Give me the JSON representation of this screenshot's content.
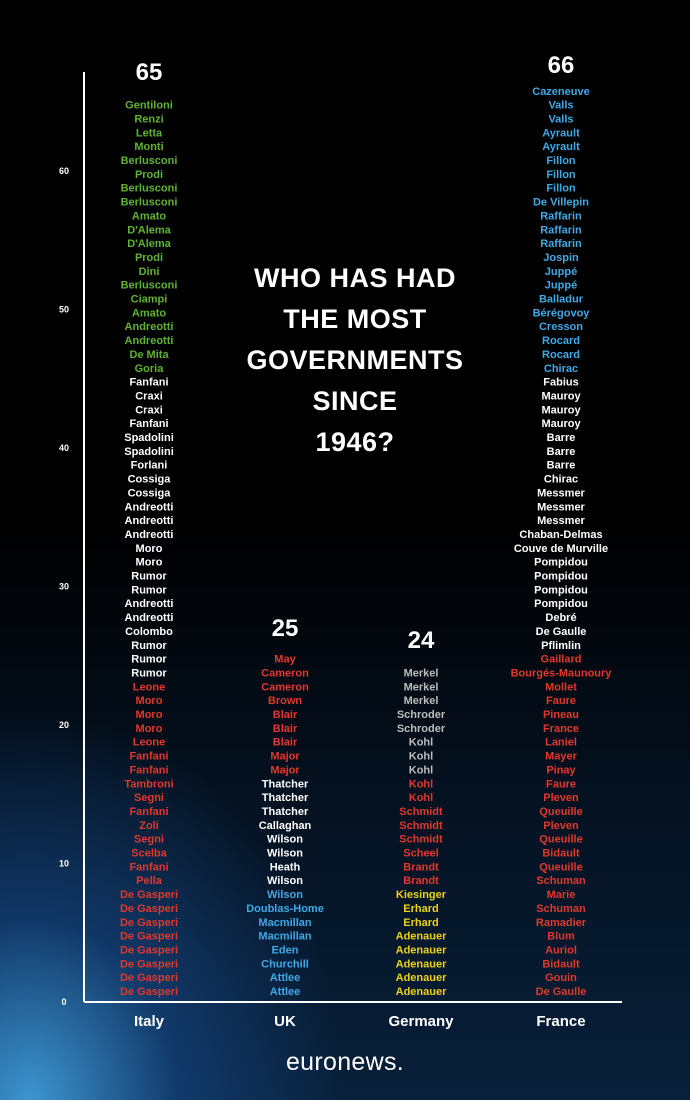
{
  "headline": [
    "WHO HAS HAD",
    "THE MOST",
    "GOVERNMENTS",
    "SINCE",
    "1946?"
  ],
  "brand": "euronews.",
  "colors": {
    "red": "#e0382c",
    "white": "#ffffff",
    "green": "#5fb233",
    "blue": "#3fa9e6",
    "grey": "#bdbdbd",
    "yellow": "#ecd21a"
  },
  "chart_data": {
    "type": "bar",
    "ylim": [
      0,
      66
    ],
    "yticks": [
      0,
      10,
      20,
      30,
      40,
      50,
      60
    ],
    "categories": [
      "Italy",
      "UK",
      "Germany",
      "France"
    ],
    "totals": [
      65,
      25,
      24,
      66
    ],
    "columns": [
      {
        "country": "Italy",
        "total": "65",
        "governments": [
          {
            "name": "De Gasperi",
            "color": "red"
          },
          {
            "name": "De Gasperi",
            "color": "red"
          },
          {
            "name": "De Gasperi",
            "color": "red"
          },
          {
            "name": "De Gasperi",
            "color": "red"
          },
          {
            "name": "De Gasperi",
            "color": "red"
          },
          {
            "name": "De Gasperi",
            "color": "red"
          },
          {
            "name": "De Gasperi",
            "color": "red"
          },
          {
            "name": "De Gasperi",
            "color": "red"
          },
          {
            "name": "Pella",
            "color": "red"
          },
          {
            "name": "Fanfani",
            "color": "red"
          },
          {
            "name": "Scelba",
            "color": "red"
          },
          {
            "name": "Segni",
            "color": "red"
          },
          {
            "name": "Zoli",
            "color": "red"
          },
          {
            "name": "Fanfani",
            "color": "red"
          },
          {
            "name": "Segni",
            "color": "red"
          },
          {
            "name": "Tambroni",
            "color": "red"
          },
          {
            "name": "Fanfani",
            "color": "red"
          },
          {
            "name": "Fanfani",
            "color": "red"
          },
          {
            "name": "Leone",
            "color": "red"
          },
          {
            "name": "Moro",
            "color": "red"
          },
          {
            "name": "Moro",
            "color": "red"
          },
          {
            "name": "Moro",
            "color": "red"
          },
          {
            "name": "Leone",
            "color": "red"
          },
          {
            "name": "Rumor",
            "color": "white"
          },
          {
            "name": "Rumor",
            "color": "white"
          },
          {
            "name": "Rumor",
            "color": "white"
          },
          {
            "name": "Colombo",
            "color": "white"
          },
          {
            "name": "Andreotti",
            "color": "white"
          },
          {
            "name": "Andreotti",
            "color": "white"
          },
          {
            "name": "Rumor",
            "color": "white"
          },
          {
            "name": "Rumor",
            "color": "white"
          },
          {
            "name": "Moro",
            "color": "white"
          },
          {
            "name": "Moro",
            "color": "white"
          },
          {
            "name": "Andreotti",
            "color": "white"
          },
          {
            "name": "Andreotti",
            "color": "white"
          },
          {
            "name": "Andreotti",
            "color": "white"
          },
          {
            "name": "Cossiga",
            "color": "white"
          },
          {
            "name": "Cossiga",
            "color": "white"
          },
          {
            "name": "Forlani",
            "color": "white"
          },
          {
            "name": "Spadolini",
            "color": "white"
          },
          {
            "name": "Spadolini",
            "color": "white"
          },
          {
            "name": "Fanfani",
            "color": "white"
          },
          {
            "name": "Craxi",
            "color": "white"
          },
          {
            "name": "Craxi",
            "color": "white"
          },
          {
            "name": "Fanfani",
            "color": "white"
          },
          {
            "name": "Goria",
            "color": "green"
          },
          {
            "name": "De Mita",
            "color": "green"
          },
          {
            "name": "Andreotti",
            "color": "green"
          },
          {
            "name": "Andreotti",
            "color": "green"
          },
          {
            "name": "Amato",
            "color": "green"
          },
          {
            "name": "Ciampi",
            "color": "green"
          },
          {
            "name": "Berlusconi",
            "color": "green"
          },
          {
            "name": "Dini",
            "color": "green"
          },
          {
            "name": "Prodi",
            "color": "green"
          },
          {
            "name": "D'Alema",
            "color": "green"
          },
          {
            "name": "D'Alema",
            "color": "green"
          },
          {
            "name": "Amato",
            "color": "green"
          },
          {
            "name": "Berlusconi",
            "color": "green"
          },
          {
            "name": "Berlusconi",
            "color": "green"
          },
          {
            "name": "Prodi",
            "color": "green"
          },
          {
            "name": "Berlusconi",
            "color": "green"
          },
          {
            "name": "Monti",
            "color": "green"
          },
          {
            "name": "Letta",
            "color": "green"
          },
          {
            "name": "Renzi",
            "color": "green"
          },
          {
            "name": "Gentiloni",
            "color": "green"
          }
        ]
      },
      {
        "country": "UK",
        "total": "25",
        "governments": [
          {
            "name": "Attlee",
            "color": "blue"
          },
          {
            "name": "Attlee",
            "color": "blue"
          },
          {
            "name": "Churchill",
            "color": "blue"
          },
          {
            "name": "Eden",
            "color": "blue"
          },
          {
            "name": "Macmillan",
            "color": "blue"
          },
          {
            "name": "Macmillan",
            "color": "blue"
          },
          {
            "name": "Doublas-Home",
            "color": "blue"
          },
          {
            "name": "Wilson",
            "color": "blue"
          },
          {
            "name": "Wilson",
            "color": "white"
          },
          {
            "name": "Heath",
            "color": "white"
          },
          {
            "name": "Wilson",
            "color": "white"
          },
          {
            "name": "Wilson",
            "color": "white"
          },
          {
            "name": "Callaghan",
            "color": "white"
          },
          {
            "name": "Thatcher",
            "color": "white"
          },
          {
            "name": "Thatcher",
            "color": "white"
          },
          {
            "name": "Thatcher",
            "color": "white"
          },
          {
            "name": "Major",
            "color": "red"
          },
          {
            "name": "Major",
            "color": "red"
          },
          {
            "name": "Blair",
            "color": "red"
          },
          {
            "name": "Blair",
            "color": "red"
          },
          {
            "name": "Blair",
            "color": "red"
          },
          {
            "name": "Brown",
            "color": "red"
          },
          {
            "name": "Cameron",
            "color": "red"
          },
          {
            "name": "Cameron",
            "color": "red"
          },
          {
            "name": "May",
            "color": "red"
          }
        ]
      },
      {
        "country": "Germany",
        "total": "24",
        "governments": [
          {
            "name": "Adenauer",
            "color": "yellow"
          },
          {
            "name": "Adenauer",
            "color": "yellow"
          },
          {
            "name": "Adenauer",
            "color": "yellow"
          },
          {
            "name": "Adenauer",
            "color": "yellow"
          },
          {
            "name": "Adenauer",
            "color": "yellow"
          },
          {
            "name": "Erhard",
            "color": "yellow"
          },
          {
            "name": "Erhard",
            "color": "yellow"
          },
          {
            "name": "Kiesinger",
            "color": "yellow"
          },
          {
            "name": "Brandt",
            "color": "red"
          },
          {
            "name": "Brandt",
            "color": "red"
          },
          {
            "name": "Scheel",
            "color": "red"
          },
          {
            "name": "Schmidt",
            "color": "red"
          },
          {
            "name": "Schmidt",
            "color": "red"
          },
          {
            "name": "Schmidt",
            "color": "red"
          },
          {
            "name": "Kohl",
            "color": "red"
          },
          {
            "name": "Kohl",
            "color": "red"
          },
          {
            "name": "Kohl",
            "color": "grey"
          },
          {
            "name": "Kohl",
            "color": "grey"
          },
          {
            "name": "Kohl",
            "color": "grey"
          },
          {
            "name": "Schroder",
            "color": "grey"
          },
          {
            "name": "Schroder",
            "color": "grey"
          },
          {
            "name": "Merkel",
            "color": "grey"
          },
          {
            "name": "Merkel",
            "color": "grey"
          },
          {
            "name": "Merkel",
            "color": "grey"
          }
        ]
      },
      {
        "country": "France",
        "total": "66",
        "governments": [
          {
            "name": "De Gaulle",
            "color": "red"
          },
          {
            "name": "Gouin",
            "color": "red"
          },
          {
            "name": "Bidault",
            "color": "red"
          },
          {
            "name": "Auriol",
            "color": "red"
          },
          {
            "name": "Blum",
            "color": "red"
          },
          {
            "name": "Ramadier",
            "color": "red"
          },
          {
            "name": "Schuman",
            "color": "red"
          },
          {
            "name": "Marie",
            "color": "red"
          },
          {
            "name": "Schuman",
            "color": "red"
          },
          {
            "name": "Queuille",
            "color": "red"
          },
          {
            "name": "Bidault",
            "color": "red"
          },
          {
            "name": "Queuille",
            "color": "red"
          },
          {
            "name": "Pleven",
            "color": "red"
          },
          {
            "name": "Queuille",
            "color": "red"
          },
          {
            "name": "Pleven",
            "color": "red"
          },
          {
            "name": "Faure",
            "color": "red"
          },
          {
            "name": "Pinay",
            "color": "red"
          },
          {
            "name": "Mayer",
            "color": "red"
          },
          {
            "name": "Laniel",
            "color": "red"
          },
          {
            "name": "France",
            "color": "red"
          },
          {
            "name": "Pineau",
            "color": "red"
          },
          {
            "name": "Faure",
            "color": "red"
          },
          {
            "name": "Mollet",
            "color": "red"
          },
          {
            "name": "Bourgés-Maunoury",
            "color": "red"
          },
          {
            "name": "Gaillard",
            "color": "red"
          },
          {
            "name": "Pflimlin",
            "color": "white"
          },
          {
            "name": "De Gaulle",
            "color": "white"
          },
          {
            "name": "Debré",
            "color": "white"
          },
          {
            "name": "Pompidou",
            "color": "white"
          },
          {
            "name": "Pompidou",
            "color": "white"
          },
          {
            "name": "Pompidou",
            "color": "white"
          },
          {
            "name": "Pompidou",
            "color": "white"
          },
          {
            "name": "Couve de Murville",
            "color": "white"
          },
          {
            "name": "Chaban-Delmas",
            "color": "white"
          },
          {
            "name": "Messmer",
            "color": "white"
          },
          {
            "name": "Messmer",
            "color": "white"
          },
          {
            "name": "Messmer",
            "color": "white"
          },
          {
            "name": "Chirac",
            "color": "white"
          },
          {
            "name": "Barre",
            "color": "white"
          },
          {
            "name": "Barre",
            "color": "white"
          },
          {
            "name": "Barre",
            "color": "white"
          },
          {
            "name": "Mauroy",
            "color": "white"
          },
          {
            "name": "Mauroy",
            "color": "white"
          },
          {
            "name": "Mauroy",
            "color": "white"
          },
          {
            "name": "Fabius",
            "color": "white"
          },
          {
            "name": "Chirac",
            "color": "blue"
          },
          {
            "name": "Rocard",
            "color": "blue"
          },
          {
            "name": "Rocard",
            "color": "blue"
          },
          {
            "name": "Cresson",
            "color": "blue"
          },
          {
            "name": "Bérégovoy",
            "color": "blue"
          },
          {
            "name": "Balladur",
            "color": "blue"
          },
          {
            "name": "Juppé",
            "color": "blue"
          },
          {
            "name": "Juppé",
            "color": "blue"
          },
          {
            "name": "Jospin",
            "color": "blue"
          },
          {
            "name": "Raffarin",
            "color": "blue"
          },
          {
            "name": "Raffarin",
            "color": "blue"
          },
          {
            "name": "Raffarin",
            "color": "blue"
          },
          {
            "name": "De Villepin",
            "color": "blue"
          },
          {
            "name": "Fillon",
            "color": "blue"
          },
          {
            "name": "Fillon",
            "color": "blue"
          },
          {
            "name": "Fillon",
            "color": "blue"
          },
          {
            "name": "Ayrault",
            "color": "blue"
          },
          {
            "name": "Ayrault",
            "color": "blue"
          },
          {
            "name": "Valls",
            "color": "blue"
          },
          {
            "name": "Valls",
            "color": "blue"
          },
          {
            "name": "Cazeneuve",
            "color": "blue"
          }
        ]
      }
    ]
  }
}
